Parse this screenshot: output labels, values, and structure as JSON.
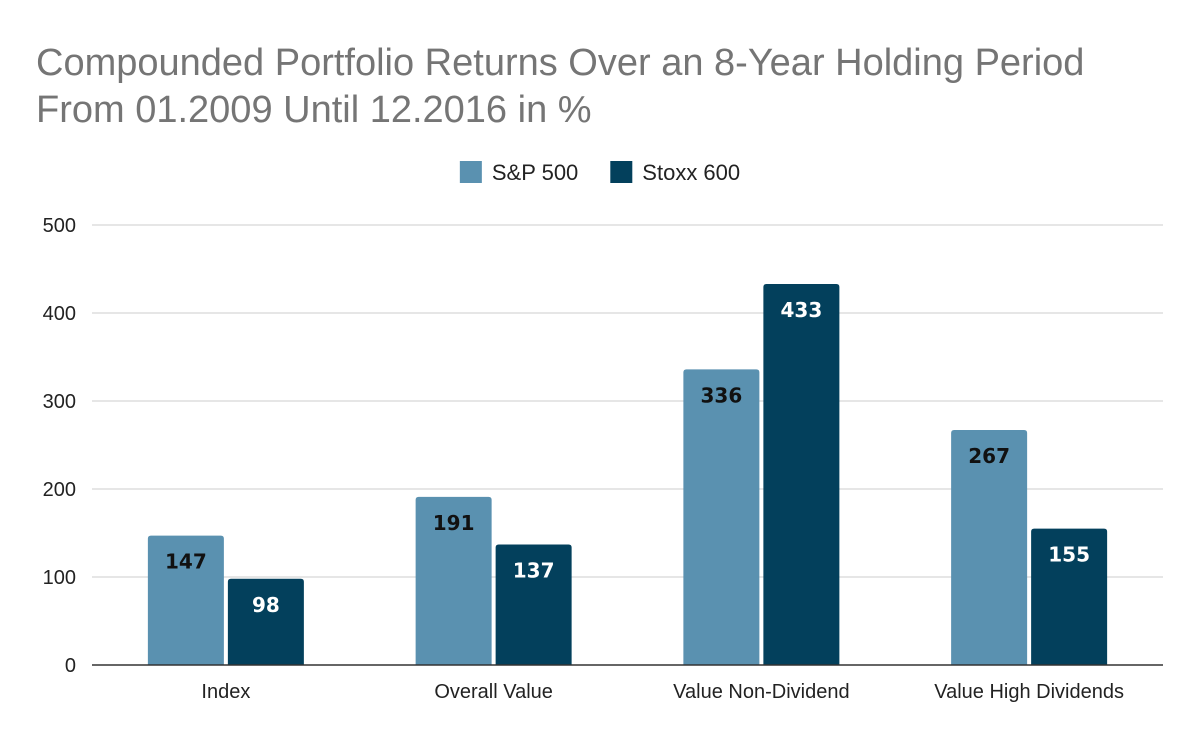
{
  "chart_data": {
    "type": "bar",
    "title": "Compounded Portfolio Returns Over an 8-Year Holding Period From 01.2009 Until 12.2016 in %",
    "categories": [
      "Index",
      "Overall Value",
      "Value Non-Dividend",
      "Value High Dividends"
    ],
    "series": [
      {
        "name": "S&P 500",
        "values": [
          147,
          191,
          336,
          267
        ],
        "color": "#5a91b0",
        "label_color": "#111111"
      },
      {
        "name": "Stoxx 600",
        "values": [
          98,
          137,
          433,
          155
        ],
        "color": "#03405c",
        "label_color": "#ffffff"
      }
    ],
    "ylim": [
      0,
      500
    ],
    "yticks": [
      0,
      100,
      200,
      300,
      400,
      500
    ],
    "xlabel": "",
    "ylabel": "",
    "grid": true,
    "legend_position": "top-center",
    "data_labels": true
  }
}
